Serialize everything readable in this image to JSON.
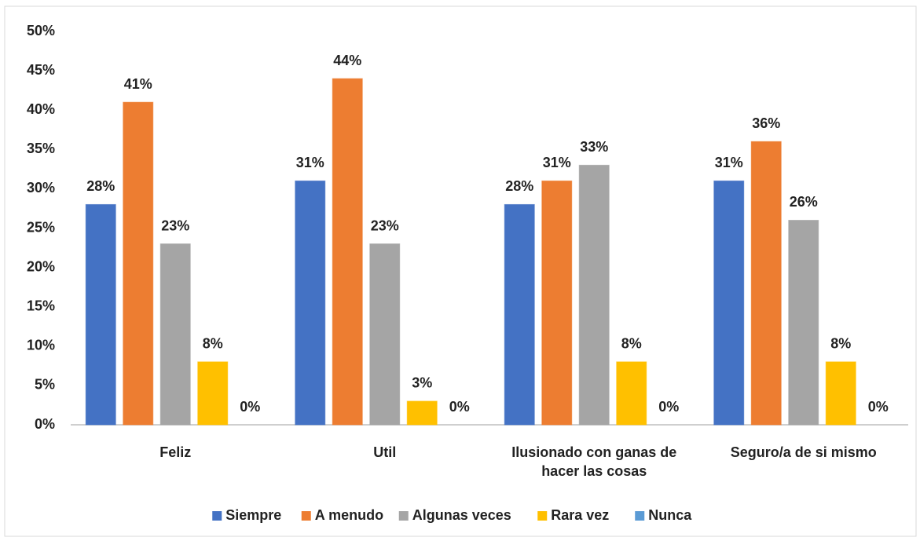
{
  "chart_data": {
    "type": "bar",
    "categories": [
      "Feliz",
      "Util",
      "Ilusionado con ganas de hacer las cosas",
      "Seguro/a de si mismo"
    ],
    "series": [
      {
        "name": "Siempre",
        "color": "#4472c4",
        "values": [
          28,
          31,
          28,
          31
        ],
        "value_labels": [
          "28%",
          "31%",
          "28%",
          "31%"
        ]
      },
      {
        "name": "A menudo",
        "color": "#ed7d31",
        "values": [
          41,
          44,
          31,
          36
        ],
        "value_labels": [
          "41%",
          "44%",
          "31%",
          "36%"
        ]
      },
      {
        "name": "Algunas veces",
        "color": "#a5a5a5",
        "values": [
          23,
          23,
          33,
          26
        ],
        "value_labels": [
          "23%",
          "23%",
          "33%",
          "26%"
        ]
      },
      {
        "name": "Rara vez",
        "color": "#ffc000",
        "values": [
          8,
          3,
          8,
          8
        ],
        "value_labels": [
          "8%",
          "3%",
          "8%",
          "8%"
        ]
      },
      {
        "name": "Nunca",
        "color": "#5b9bd5",
        "values": [
          0,
          0,
          0,
          0
        ],
        "value_labels": [
          "0%",
          "0%",
          "0%",
          "0%"
        ]
      }
    ],
    "ylim": [
      0,
      50
    ],
    "yticks": [
      {
        "value": 0,
        "label": "0%"
      },
      {
        "value": 5,
        "label": "5%"
      },
      {
        "value": 10,
        "label": "10%"
      },
      {
        "value": 15,
        "label": "15%"
      },
      {
        "value": 20,
        "label": "20%"
      },
      {
        "value": 25,
        "label": "25%"
      },
      {
        "value": 30,
        "label": "30%"
      },
      {
        "value": 35,
        "label": "35%"
      },
      {
        "value": 40,
        "label": "40%"
      },
      {
        "value": 45,
        "label": "45%"
      },
      {
        "value": 50,
        "label": "50%"
      }
    ],
    "grid": false,
    "legend": "bottom"
  }
}
